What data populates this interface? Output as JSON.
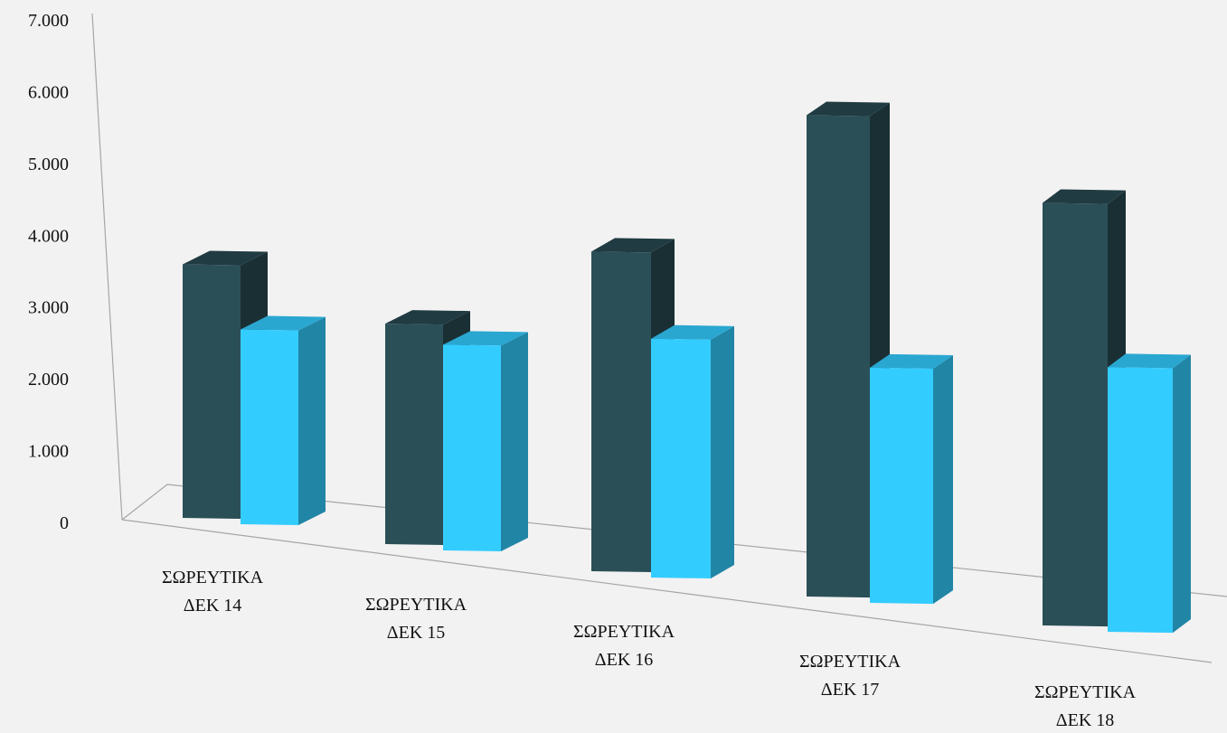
{
  "chart_data": {
    "type": "bar",
    "title": "",
    "xlabel": "",
    "ylabel": "",
    "ylim": [
      0,
      7000
    ],
    "y_ticks": [
      "0",
      "1.000",
      "2.000",
      "3.000",
      "4.000",
      "5.000",
      "6.000",
      "7.000"
    ],
    "y_tick_values": [
      0,
      1000,
      2000,
      3000,
      4000,
      5000,
      6000,
      7000
    ],
    "categories": [
      [
        "ΣΩΡΕΥΤΙΚΑ",
        "ΔΕΚ 14"
      ],
      [
        "ΣΩΡΕΥΤΙΚΑ",
        "ΔΕΚ 15"
      ],
      [
        "ΣΩΡΕΥΤΙΚΑ",
        "ΔΕΚ 16"
      ],
      [
        "ΣΩΡΕΥΤΙΚΑ",
        "ΔΕΚ 17"
      ],
      [
        "ΣΩΡΕΥΤΙΚΑ",
        "ΔΕΚ 18"
      ]
    ],
    "series": [
      {
        "values": [
          3450,
          3000,
          4350,
          6550,
          5750
        ],
        "color": "#2b4f57"
      },
      {
        "values": [
          2650,
          2800,
          3250,
          3200,
          3600
        ],
        "color": "#33ccff"
      }
    ],
    "grid": false,
    "legend": "none",
    "style": "3d-clustered-column"
  }
}
